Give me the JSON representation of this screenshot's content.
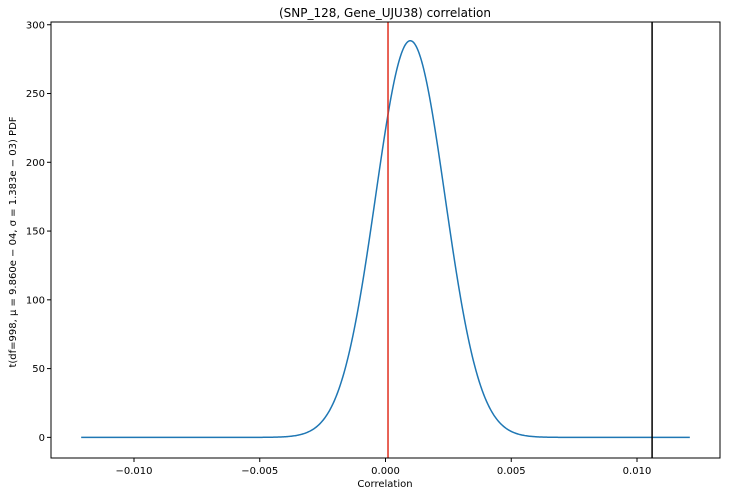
{
  "chart_data": {
    "type": "line",
    "title": "(SNP_128, Gene_UJU38) correlation",
    "xlabel": "Correlation",
    "ylabel": "t(df=998, μ = 9.860e − 04, σ = 1.383e − 03) PDF",
    "xlim": [
      -0.0133,
      0.0133
    ],
    "ylim": [
      -15,
      302
    ],
    "x_ticks": [
      -0.01,
      -0.005,
      0.0,
      0.005,
      0.01
    ],
    "x_tick_labels": [
      "−0.010",
      "−0.005",
      "0.000",
      "0.005",
      "0.010"
    ],
    "y_ticks": [
      0,
      50,
      100,
      150,
      200,
      250,
      300
    ],
    "y_tick_labels": [
      "0",
      "50",
      "100",
      "150",
      "200",
      "250",
      "300"
    ],
    "grid": false,
    "distribution": {
      "df": 998,
      "mu": 0.000986,
      "sigma": 0.001383
    },
    "series": [
      {
        "color": "#1f77b4",
        "x": [
          -0.0121,
          -0.008,
          -0.005,
          -0.004,
          -0.003,
          -0.0025,
          -0.002,
          -0.0015,
          -0.001,
          -0.0005,
          0.0,
          0.0005,
          0.000986,
          0.0015,
          0.002,
          0.0025,
          0.003,
          0.0035,
          0.004,
          0.005,
          0.007,
          0.0121
        ],
        "y": [
          0,
          0,
          0.4,
          2.8,
          12.9,
          25.4,
          44.7,
          72.1,
          106.8,
          146.0,
          223.9,
          269.3,
          288.4,
          269.6,
          224.5,
          162.2,
          103.6,
          57.3,
          27.4,
          4.1,
          0.3,
          0
        ]
      }
    ],
    "vlines": [
      {
        "x": 0.0001,
        "color": "#e03020"
      },
      {
        "x": 0.0106,
        "color": "#000000"
      }
    ]
  }
}
